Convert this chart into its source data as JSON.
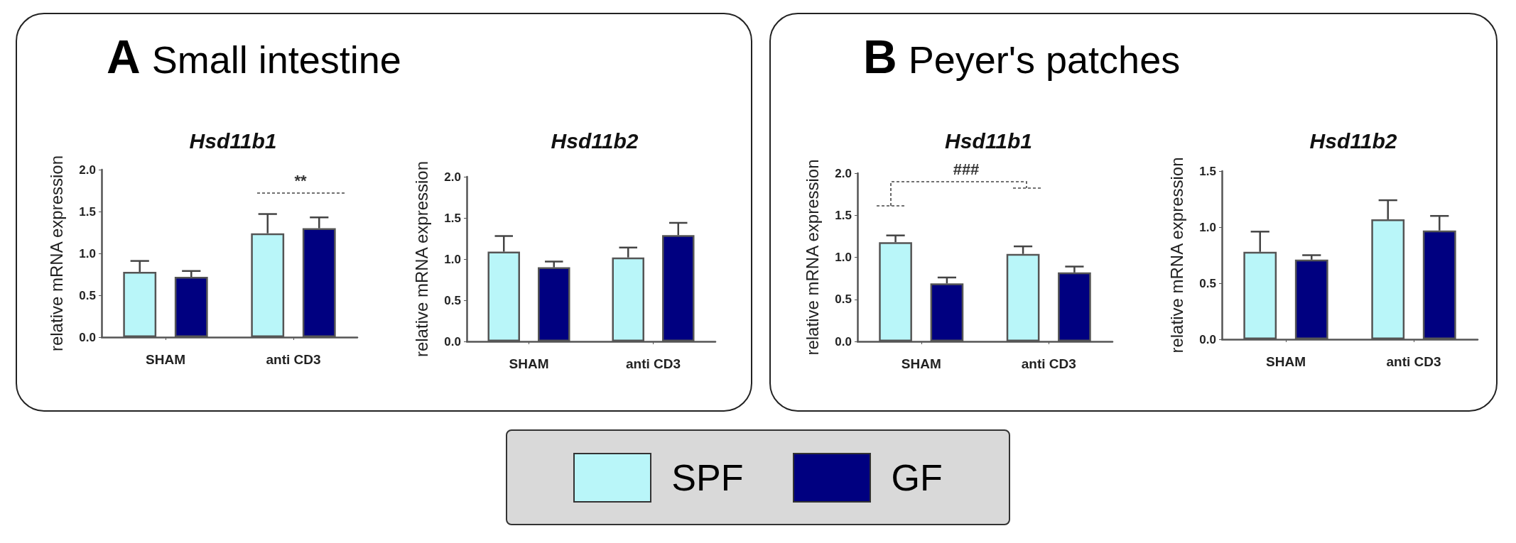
{
  "chart_data": [
    {
      "type": "bar",
      "title": "Hsd11b1",
      "ylabel": "relative mRNA expression",
      "categories": [
        "SHAM",
        "anti CD3"
      ],
      "series": [
        {
          "name": "SPF",
          "color": "#b9f6f9",
          "values": [
            0.78,
            1.24
          ],
          "errors": [
            [
              0.78,
              0.91
            ],
            [
              1.24,
              1.47
            ]
          ]
        },
        {
          "name": "GF",
          "color": "#000080",
          "values": [
            0.72,
            1.3
          ],
          "errors": [
            [
              0.72,
              0.79
            ],
            [
              1.3,
              1.43
            ]
          ]
        }
      ],
      "ylim": [
        0,
        2
      ],
      "yticks": [
        {
          "value": 0,
          "label": "0.0"
        },
        {
          "value": 0.5,
          "label": "0.5"
        },
        {
          "value": 1,
          "label": "1.0"
        },
        {
          "value": 1.5,
          "label": "1.5"
        },
        {
          "value": 2,
          "label": "2.0"
        }
      ],
      "annotations": [
        "A Small intestine",
        "**"
      ],
      "grid": false,
      "legend": "bottom"
    },
    {
      "type": "bar",
      "title": "Hsd11b2",
      "ylabel": "relative mRNA expression",
      "categories": [
        "SHAM",
        "anti CD3"
      ],
      "series": [
        {
          "name": "SPF",
          "color": "#b9f6f9",
          "values": [
            1.09,
            1.02
          ],
          "errors": [
            [
              1.09,
              1.28
            ],
            [
              1.02,
              1.14
            ]
          ]
        },
        {
          "name": "GF",
          "color": "#000080",
          "values": [
            0.9,
            1.29
          ],
          "errors": [
            [
              0.9,
              0.97
            ],
            [
              1.29,
              1.44
            ]
          ]
        }
      ],
      "ylim": [
        0,
        2
      ],
      "yticks": [
        {
          "value": 0,
          "label": "0.0"
        },
        {
          "value": 0.5,
          "label": "0.5"
        },
        {
          "value": 1,
          "label": "1.0"
        },
        {
          "value": 1.5,
          "label": "1.5"
        },
        {
          "value": 2,
          "label": "2.0"
        }
      ],
      "grid": false,
      "legend": "bottom"
    },
    {
      "type": "bar",
      "title": "Hsd11b1",
      "ylabel": "relative mRNA expression",
      "categories": [
        "SHAM",
        "anti CD3"
      ],
      "series": [
        {
          "name": "SPF",
          "color": "#b9f6f9",
          "values": [
            1.18,
            1.04
          ],
          "errors": [
            [
              1.18,
              1.26
            ],
            [
              1.04,
              1.13
            ]
          ]
        },
        {
          "name": "GF",
          "color": "#000080",
          "values": [
            0.69,
            0.82
          ],
          "errors": [
            [
              0.69,
              0.76
            ],
            [
              0.82,
              0.89
            ]
          ]
        }
      ],
      "ylim": [
        0,
        2
      ],
      "yticks": [
        {
          "value": 0,
          "label": "0.0"
        },
        {
          "value": 0.5,
          "label": "0.5"
        },
        {
          "value": 1,
          "label": "1.0"
        },
        {
          "value": 1.5,
          "label": "1.5"
        },
        {
          "value": 2,
          "label": "2.0"
        }
      ],
      "annotations": [
        "B Peyer's patches",
        "###"
      ],
      "grid": false,
      "legend": "bottom"
    },
    {
      "type": "bar",
      "title": "Hsd11b2",
      "ylabel": "relative mRNA expression",
      "categories": [
        "SHAM",
        "anti CD3"
      ],
      "series": [
        {
          "name": "SPF",
          "color": "#b9f6f9",
          "values": [
            0.78,
            1.07
          ],
          "errors": [
            [
              0.78,
              0.96
            ],
            [
              1.07,
              1.24
            ]
          ]
        },
        {
          "name": "GF",
          "color": "#000080",
          "values": [
            0.71,
            0.97
          ],
          "errors": [
            [
              0.71,
              0.75
            ],
            [
              0.97,
              1.1
            ]
          ]
        }
      ],
      "ylim": [
        0,
        1.5
      ],
      "yticks": [
        {
          "value": 0,
          "label": "0.0"
        },
        {
          "value": 0.5,
          "label": "0.5"
        },
        {
          "value": 1,
          "label": "1.0"
        },
        {
          "value": 1.5,
          "label": "1.5"
        }
      ],
      "grid": false,
      "legend": "bottom"
    }
  ]
}
